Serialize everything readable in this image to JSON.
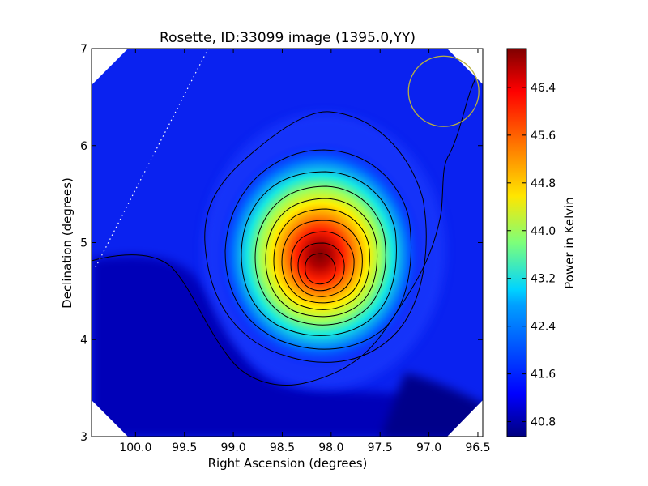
{
  "chart_data": {
    "type": "heatmap",
    "title": "Rosette, ID:33099 image (1395.0,YY)",
    "xlabel": "Right Ascension (degrees)",
    "ylabel": "Declination (degrees)",
    "xlim": [
      100.45,
      96.45
    ],
    "ylim": [
      3,
      7
    ],
    "x_ticks": [
      100.0,
      99.5,
      99.0,
      98.5,
      98.0,
      97.5,
      97.0,
      96.5
    ],
    "x_tick_labels": [
      "100.0",
      "99.5",
      "99.0",
      "98.5",
      "98.0",
      "97.5",
      "97.0",
      "96.5"
    ],
    "y_ticks": [
      3,
      4,
      5,
      6,
      7
    ],
    "y_tick_labels": [
      "3",
      "4",
      "5",
      "6",
      "7"
    ],
    "colorbar": {
      "label": "Power in Kelvin",
      "vmin": 40.55,
      "vmax": 47.05,
      "ticks": [
        40.8,
        41.6,
        42.4,
        43.2,
        44.0,
        44.8,
        45.6,
        46.4
      ],
      "tick_labels": [
        "40.8",
        "41.6",
        "42.4",
        "43.2",
        "44.0",
        "44.8",
        "45.6",
        "46.4"
      ],
      "colormap": "jet"
    },
    "source_peak": {
      "ra": 98.08,
      "dec": 4.82,
      "value": 47.0
    },
    "contour_count": 13,
    "beam_circle": {
      "ra": 96.85,
      "dec": 6.56,
      "radius_deg": 0.36,
      "color": "#b8b040"
    },
    "grid": false,
    "legend": "none"
  }
}
